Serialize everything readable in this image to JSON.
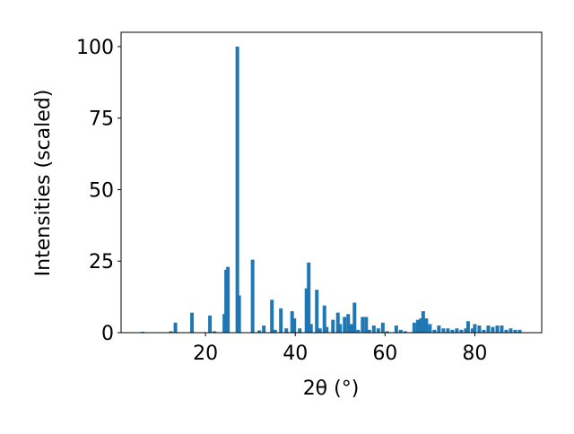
{
  "chart_data": {
    "type": "bar",
    "xlabel": "2θ (°)",
    "ylabel": "Intensities (scaled)",
    "color": "#1f77b4",
    "x": [
      6,
      12.3,
      13.3,
      17,
      21,
      22,
      24.2,
      24.6,
      25,
      27.1,
      27.5,
      30.5,
      32,
      33,
      34.8,
      35.5,
      36.8,
      38,
      39.3,
      39.8,
      41,
      42.5,
      43,
      43.5,
      44.8,
      45.5,
      46.5,
      47,
      48.4,
      49.5,
      50,
      51,
      51.8,
      52.5,
      53.2,
      54,
      55,
      55.8,
      56.5,
      57.5,
      58.5,
      59.5,
      60.5,
      62.5,
      63.5,
      64.5,
      66.5,
      67.3,
      68,
      68.5,
      69.2,
      70,
      71,
      72,
      73,
      74,
      75,
      76,
      77,
      78,
      78.5,
      79.5,
      80,
      81,
      82,
      83,
      84,
      85,
      86,
      87,
      88,
      89,
      90
    ],
    "values": [
      0.3,
      0.5,
      3.5,
      7,
      6,
      0.5,
      6.5,
      22,
      23,
      100,
      13,
      25.5,
      0.8,
      2.5,
      11.5,
      1,
      8.5,
      1.5,
      7.5,
      5,
      1.5,
      15.5,
      24.5,
      3,
      15,
      1.5,
      9.5,
      2,
      4.5,
      7,
      3,
      5.5,
      6.5,
      3,
      10.5,
      1,
      5.5,
      5.5,
      1,
      2.5,
      1.5,
      3.5,
      0.5,
      2.5,
      1,
      0.5,
      3.5,
      4.5,
      5,
      7.5,
      5,
      3,
      1,
      2.5,
      1.5,
      1.5,
      1,
      1.5,
      1,
      1.5,
      4,
      1.5,
      3,
      2.5,
      1,
      2.5,
      2,
      2.5,
      2.5,
      1,
      1.5,
      1,
      1
    ],
    "xlim": [
      1.2,
      94.9
    ],
    "ylim": [
      0,
      105
    ],
    "xticks": [
      20,
      40,
      60,
      80
    ],
    "yticks": [
      0,
      25,
      50,
      75,
      100
    ]
  }
}
